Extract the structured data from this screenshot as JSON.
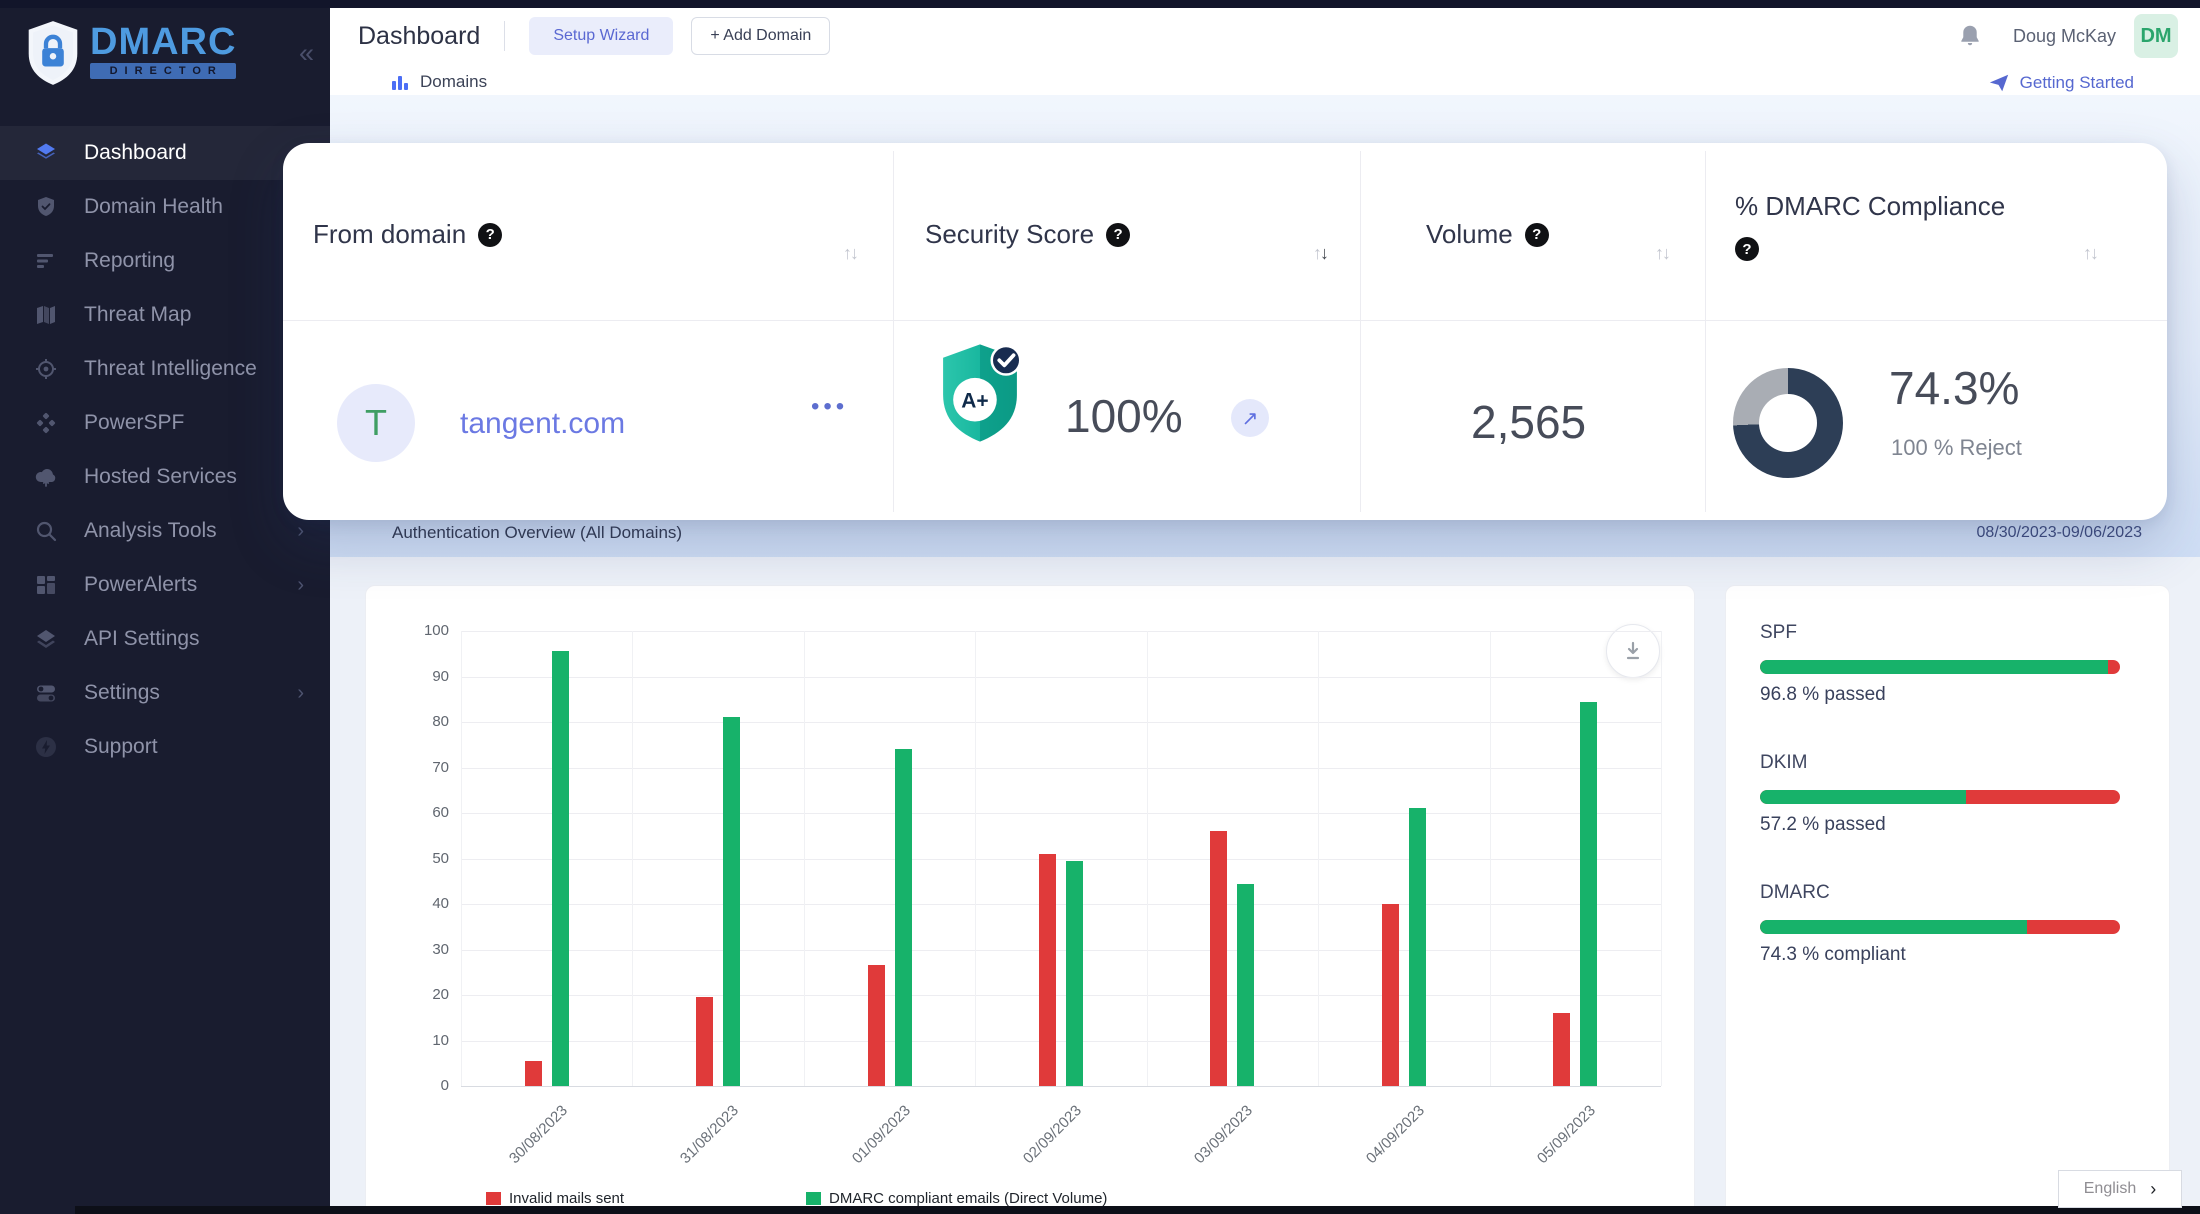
{
  "brand": {
    "name": "DMARC",
    "sub": "DIRECTOR",
    "collapse": "«"
  },
  "sidebar": {
    "items": [
      {
        "label": "Dashboard",
        "icon": "layers-icon",
        "active": true,
        "expandable": false
      },
      {
        "label": "Domain Health",
        "icon": "shield-check-icon",
        "active": false,
        "expandable": false
      },
      {
        "label": "Reporting",
        "icon": "report-lines-icon",
        "active": false,
        "expandable": false
      },
      {
        "label": "Threat Map",
        "icon": "map-icon",
        "active": false,
        "expandable": false
      },
      {
        "label": "Threat Intelligence",
        "icon": "target-icon",
        "active": false,
        "expandable": false
      },
      {
        "label": "PowerSPF",
        "icon": "dots-cluster-icon",
        "active": false,
        "expandable": false
      },
      {
        "label": "Hosted Services",
        "icon": "cloud-upload-icon",
        "active": false,
        "expandable": false
      },
      {
        "label": "Analysis Tools",
        "icon": "search-icon",
        "active": false,
        "expandable": true
      },
      {
        "label": "PowerAlerts",
        "icon": "grid-icon",
        "active": false,
        "expandable": true
      },
      {
        "label": "API Settings",
        "icon": "layers2-icon",
        "active": false,
        "expandable": false
      },
      {
        "label": "Settings",
        "icon": "toggles-icon",
        "active": false,
        "expandable": true
      },
      {
        "label": "Support",
        "icon": "bolt-icon",
        "active": false,
        "expandable": false
      }
    ]
  },
  "topbar": {
    "title": "Dashboard",
    "setup_wizard_label": "Setup Wizard",
    "add_domain_label": "+ Add Domain",
    "user_name": "Doug McKay",
    "user_initials": "DM"
  },
  "subheader": {
    "domains_label": "Domains",
    "getting_started_label": "Getting Started"
  },
  "domain_table": {
    "columns": [
      {
        "label": "From domain"
      },
      {
        "label": "Security Score"
      },
      {
        "label": "Volume"
      },
      {
        "label": "% DMARC Compliance"
      }
    ],
    "sort_glyphs": "↑↓",
    "row": {
      "initial": "T",
      "domain": "tangent.com",
      "menu_dots": "•••",
      "security_grade": "A+",
      "security_score": "100%",
      "score_link_arrow": "↗",
      "volume": "2,565",
      "compliance_percent": "74.3%",
      "compliance_value": 74.3,
      "compliance_caption": "100 % Reject",
      "donut_color": "#2d3e56",
      "donut_rest_color": "#a9adb4"
    }
  },
  "section": {
    "title": "Authentication Overview (All Domains)",
    "date_range": "08/30/2023-09/06/2023"
  },
  "chart_data": {
    "type": "bar",
    "title": "Authentication Overview (All Domains)",
    "categories": [
      "30/08/2023",
      "31/08/2023",
      "01/09/2023",
      "02/09/2023",
      "03/09/2023",
      "04/09/2023",
      "05/09/2023"
    ],
    "series": [
      {
        "name": "Invalid mails sent",
        "color": "#e03a3a",
        "values": [
          5.5,
          19.5,
          26.5,
          51,
          56,
          40,
          16
        ]
      },
      {
        "name": "DMARC compliant emails (Direct Volume)",
        "color": "#17b26a",
        "values": [
          95.5,
          81,
          74,
          49.5,
          44.5,
          61,
          84.5
        ]
      }
    ],
    "xlabel": "",
    "ylabel": "",
    "ylim": [
      0,
      100
    ],
    "ytick_step": 10,
    "grid": true,
    "legend_position": "bottom"
  },
  "auth_panel": {
    "pass_color": "#17b26a",
    "fail_color": "#e03a3a",
    "items": [
      {
        "label": "SPF",
        "percent": 96.8,
        "caption": "96.8 % passed"
      },
      {
        "label": "DKIM",
        "percent": 57.2,
        "caption": "57.2 % passed"
      },
      {
        "label": "DMARC",
        "percent": 74.3,
        "caption": "74.3 % compliant"
      }
    ]
  },
  "language": {
    "label": "English",
    "chevron": "›"
  }
}
